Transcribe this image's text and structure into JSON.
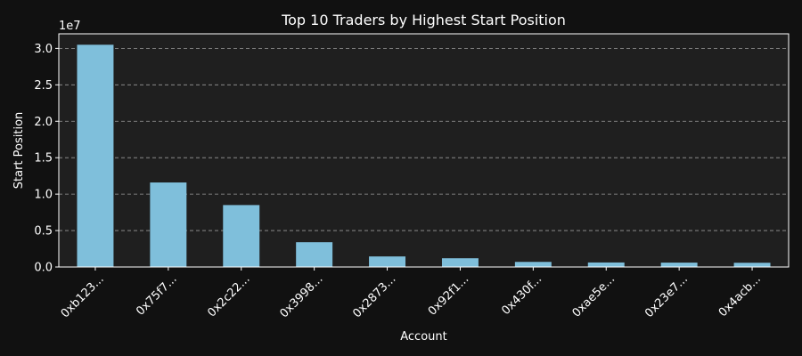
{
  "chart_data": {
    "type": "bar",
    "title": "Top 10 Traders by Highest Start Position",
    "xlabel": "Account",
    "ylabel": "Start Position",
    "offset_label": "1e7",
    "categories": [
      "0xb123...",
      "0x75f7...",
      "0x2c22...",
      "0x3998...",
      "0x2873...",
      "0x92f1...",
      "0x430f...",
      "0xae5e...",
      "0x23e7...",
      "0x4acb..."
    ],
    "values": [
      30500000,
      11600000,
      8500000,
      3400000,
      1450000,
      1200000,
      700000,
      620000,
      600000,
      580000
    ],
    "ylim": [
      0,
      32000000
    ],
    "yticks": [
      0,
      5000000,
      10000000,
      15000000,
      20000000,
      25000000,
      30000000
    ],
    "ytick_labels": [
      "0.0",
      "0.5",
      "1.0",
      "1.5",
      "2.0",
      "2.5",
      "3.0"
    ],
    "grid": true,
    "colors": {
      "bar": "#7fbfdb",
      "figure_bg": "#111111",
      "axes_bg": "#1f1f1f",
      "text": "#ffffff",
      "grid": "#9a9a9a"
    }
  }
}
